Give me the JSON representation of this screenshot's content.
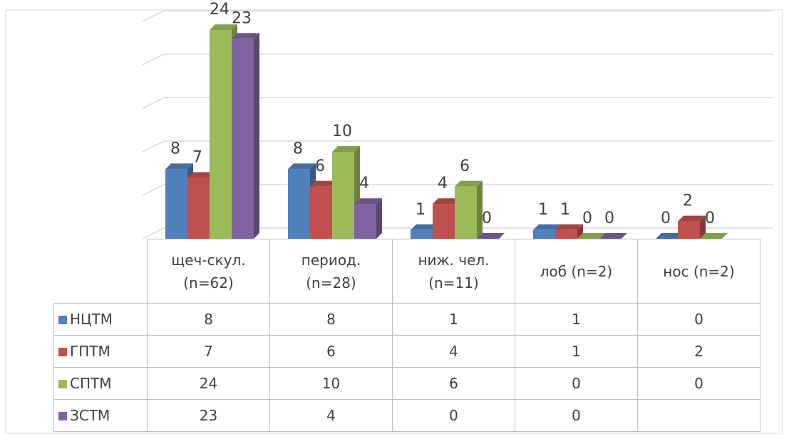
{
  "chart_data": {
    "type": "bar",
    "categories": [
      "щеч-скул. (n=62)",
      "период. (n=28)",
      "ниж. чел. (n=11)",
      "лоб (n=2)",
      "нос (n=2)"
    ],
    "series": [
      {
        "name": "НЦТМ",
        "color": "#4f81bd",
        "values": [
          8,
          8,
          1,
          1,
          0
        ]
      },
      {
        "name": "ГПТМ",
        "color": "#c0504d",
        "values": [
          7,
          6,
          4,
          1,
          2
        ]
      },
      {
        "name": "СПТМ",
        "color": "#9bbb59",
        "values": [
          24,
          10,
          6,
          0,
          0
        ]
      },
      {
        "name": "ЗСТМ",
        "color": "#8064a2",
        "values": [
          23,
          4,
          0,
          0,
          null
        ]
      }
    ],
    "ylim": [
      0,
      25
    ],
    "yticks": [
      0,
      5,
      10,
      15,
      20,
      25
    ],
    "grid": true
  }
}
